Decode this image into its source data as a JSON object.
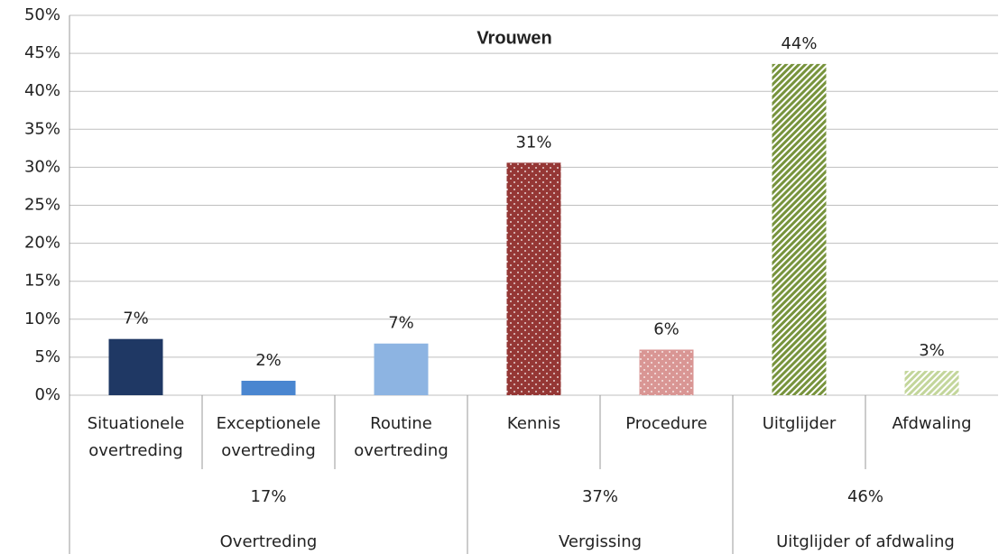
{
  "chart_data": {
    "type": "bar",
    "title": "Vrouwen",
    "categories": [
      "Situationele overtreding",
      "Exceptionele overtreding",
      "Routine overtreding",
      "Kennis",
      "Procedure",
      "Uitglijder",
      "Afdwaling"
    ],
    "values": [
      7.4,
      1.9,
      6.8,
      30.6,
      6.0,
      43.6,
      3.2
    ],
    "value_labels": [
      "7%",
      "2%",
      "7%",
      "31%",
      "6%",
      "44%",
      "3%"
    ],
    "colors": [
      "#1f3864",
      "#4a86d0",
      "#8db4e2",
      "#953735",
      "#d99694",
      "#77933c",
      "#c3d69b"
    ],
    "fills": [
      "solid",
      "solid",
      "solid",
      "dots",
      "dots",
      "hatch",
      "hatch"
    ],
    "groups": [
      {
        "name": "Overtreding",
        "size": 3,
        "total": 17,
        "total_label": "17%"
      },
      {
        "name": "Vergissing",
        "size": 2,
        "total": 37,
        "total_label": "37%"
      },
      {
        "name": "Uitglijder of afdwaling",
        "size": 2,
        "total": 46,
        "total_label": "46%"
      }
    ],
    "ylim": [
      0,
      50
    ],
    "yticks": [
      {
        "value": 0,
        "label": "0%"
      },
      {
        "value": 5,
        "label": "5%"
      },
      {
        "value": 10,
        "label": "10%"
      },
      {
        "value": 15,
        "label": "15%"
      },
      {
        "value": 20,
        "label": "20%"
      },
      {
        "value": 25,
        "label": "25%"
      },
      {
        "value": 30,
        "label": "30%"
      },
      {
        "value": 35,
        "label": "35%"
      },
      {
        "value": 40,
        "label": "40%"
      },
      {
        "value": 45,
        "label": "45%"
      },
      {
        "value": 50,
        "label": "50%"
      }
    ],
    "grid": true
  }
}
